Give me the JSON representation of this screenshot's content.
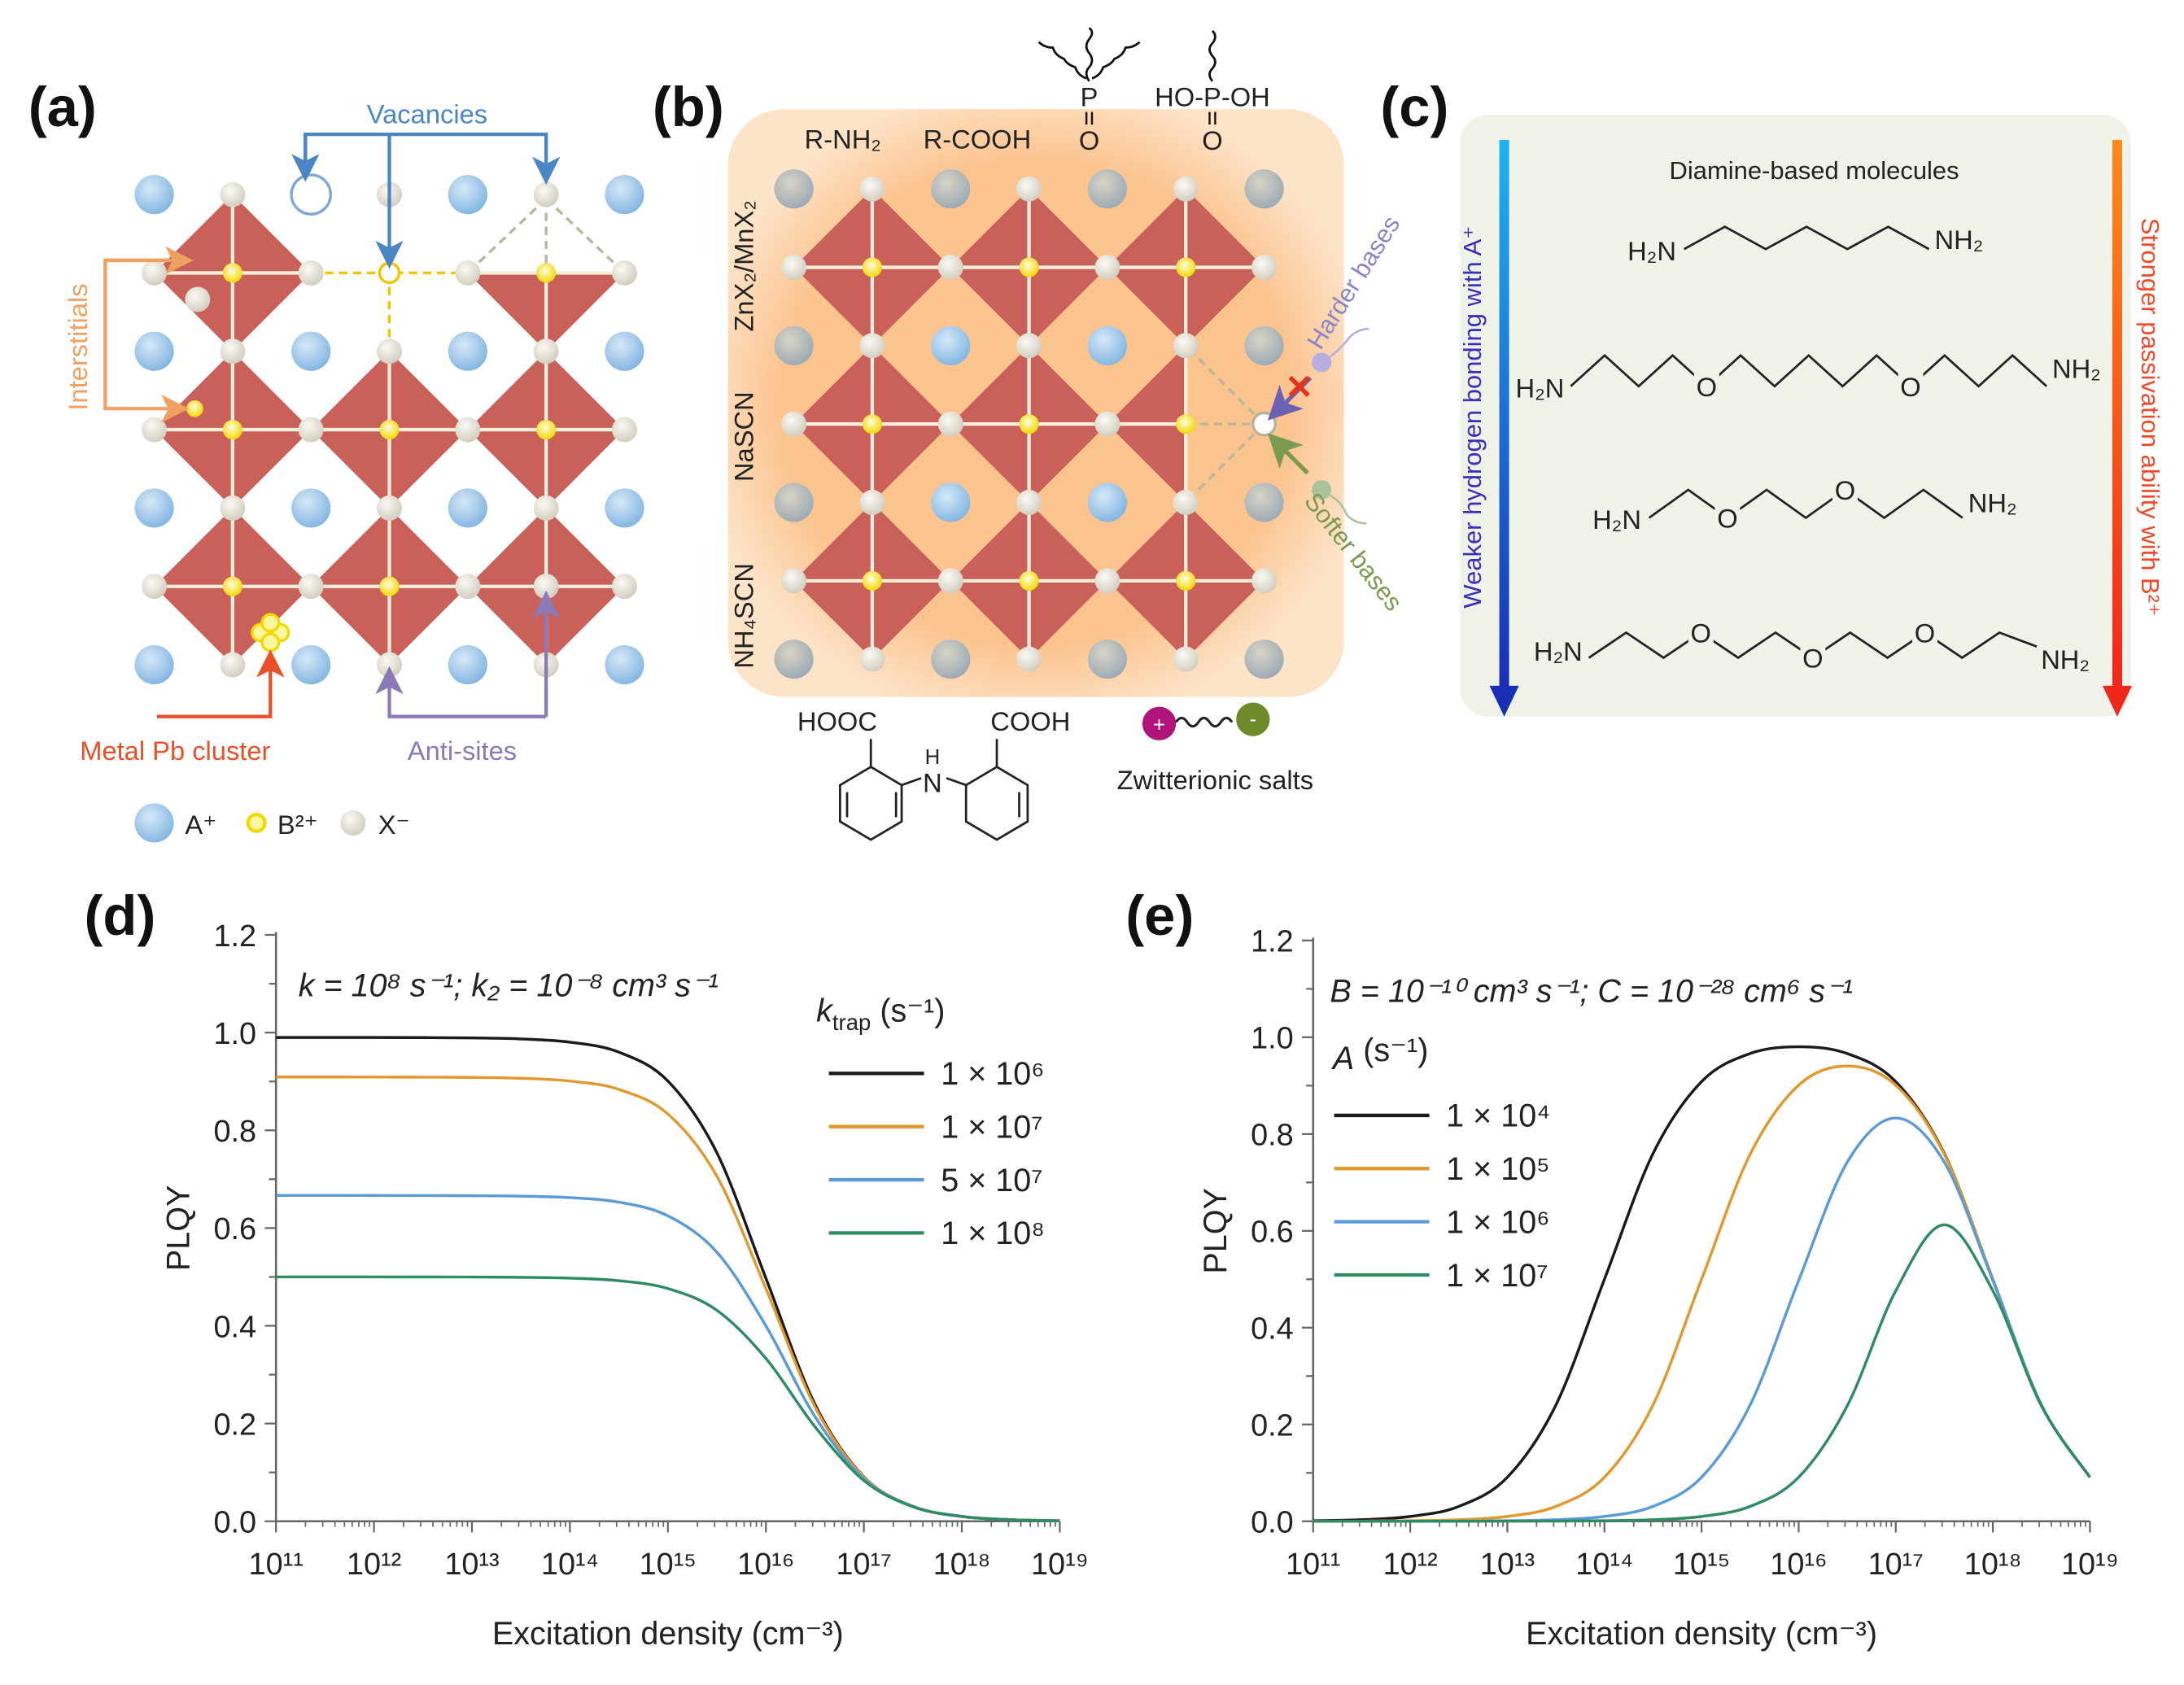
{
  "panel_labels": {
    "a": "(a)",
    "b": "(b)",
    "c": "(c)",
    "d": "(d)",
    "e": "(e)"
  },
  "panel_a": {
    "vacancies": "Vacancies",
    "interstitials": "Interstitials",
    "metal_pb_cluster": "Metal Pb cluster",
    "anti_sites": "Anti-sites",
    "legend": {
      "a": "A⁺",
      "b": "B²⁺",
      "x": "X⁻"
    },
    "colors": {
      "vacancies": "#4a86c5",
      "interstitials": "#f0a060",
      "metal_pb_cluster": "#e8502a",
      "anti_sites": "#8b79b8",
      "octahedron": "#c9605a",
      "a_site": "#8fbde6",
      "b_site": "#f5e12a",
      "x_site": "#e4e0d4"
    }
  },
  "panel_b": {
    "top": {
      "amine": "R-NH₂",
      "acid": "R-COOH",
      "phosphine_p": "P",
      "phosphine_o": "O",
      "phosphonic": "HO-P-OH",
      "phosphonic_o": "O"
    },
    "left": {
      "zn": "ZnX₂/MnX₂",
      "nascn": "NaSCN",
      "nh4scn": "NH₄SCN"
    },
    "harder_bases": "Harder bases",
    "softer_bases": "Softer bases",
    "hooc": "HOOC",
    "cooh": "COOH",
    "nh_h": "H",
    "nh_n": "N",
    "zwitterionic": "Zwitterionic salts",
    "plus": "+",
    "minus": "-",
    "block_mark": "✕"
  },
  "panel_c": {
    "title": "Diamine-based molecules",
    "left_arrow": "Weaker hydrogen bonding with A⁺",
    "right_arrow": "Stronger passivation ability with B²⁺",
    "h2n": "H₂N",
    "nh2": "NH₂",
    "oxygen": "O"
  },
  "chart_data": [
    {
      "type": "line",
      "id": "d",
      "title": "",
      "annotation": "k = 10⁸ s⁻¹; k₂ = 10⁻⁸ cm³ s⁻¹",
      "xlabel": "Excitation density (cm⁻³)",
      "ylabel": "PLQY",
      "xscale": "log",
      "xlim": [
        100000000000.0,
        1e+19
      ],
      "ylim": [
        0,
        1.2
      ],
      "xticks": [
        "10¹¹",
        "10¹²",
        "10¹³",
        "10¹⁴",
        "10¹⁵",
        "10¹⁶",
        "10¹⁷",
        "10¹⁸",
        "10¹⁹"
      ],
      "yticks": [
        "0.0",
        "0.2",
        "0.4",
        "0.6",
        "0.8",
        "1.0",
        "1.2"
      ],
      "legend_title_main": "k",
      "legend_title_sub": "trap",
      "legend_title_unit": " (s⁻¹)",
      "legend_position": "right",
      "x_log10": [
        11,
        11.5,
        12,
        12.5,
        13,
        13.5,
        14,
        14.5,
        15,
        15.5,
        16,
        16.5,
        17,
        17.5,
        18,
        18.5,
        19
      ],
      "series": [
        {
          "name": "1 × 10⁶",
          "color": "#1a1a1a",
          "values": [
            0.9901,
            0.99,
            0.99,
            0.9898,
            0.9891,
            0.987,
            0.9804,
            0.96,
            0.9009,
            0.754,
            0.4975,
            0.2397,
            0.0908,
            0.0306,
            0.0099,
            0.0032,
            0.001
          ]
        },
        {
          "name": "1 × 10⁷",
          "color": "#e0992f",
          "values": [
            0.9091,
            0.9091,
            0.909,
            0.9088,
            0.9083,
            0.9065,
            0.9009,
            0.8837,
            0.8333,
            0.7061,
            0.4762,
            0.2346,
            0.0901,
            0.0306,
            0.0099,
            0.0032,
            0.001
          ]
        },
        {
          "name": "5 × 10⁷",
          "color": "#5b9bd5",
          "values": [
            0.6667,
            0.6667,
            0.6666,
            0.6665,
            0.6662,
            0.6653,
            0.6623,
            0.6529,
            0.625,
            0.5506,
            0.4,
            0.2145,
            0.087,
            0.0302,
            0.0099,
            0.0031,
            0.001
          ]
        },
        {
          "name": "1 × 10⁸",
          "color": "#2e8b62",
          "values": [
            0.5,
            0.5,
            0.5,
            0.4999,
            0.4998,
            0.4992,
            0.4975,
            0.4922,
            0.4762,
            0.4317,
            0.3333,
            0.1937,
            0.0833,
            0.0297,
            0.0098,
            0.0031,
            0.001
          ]
        }
      ]
    },
    {
      "type": "line",
      "id": "e",
      "title": "",
      "annotation": "B = 10⁻¹⁰ cm³ s⁻¹; C = 10⁻²⁸ cm⁶ s⁻¹",
      "xlabel": "Excitation density (cm⁻³)",
      "ylabel": "PLQY",
      "xscale": "log",
      "xlim": [
        100000000000.0,
        1e+19
      ],
      "ylim": [
        0,
        1.2
      ],
      "xticks": [
        "10¹¹",
        "10¹²",
        "10¹³",
        "10¹⁴",
        "10¹⁵",
        "10¹⁶",
        "10¹⁷",
        "10¹⁸",
        "10¹⁹"
      ],
      "yticks": [
        "0.0",
        "0.2",
        "0.4",
        "0.6",
        "0.8",
        "1.0",
        "1.2"
      ],
      "legend_title_main": "A",
      "legend_title_sub": "",
      "legend_title_unit": " (s⁻¹)",
      "legend_position": "top-left",
      "x_log10": [
        11,
        11.5,
        12,
        12.5,
        13,
        13.5,
        14,
        14.5,
        15,
        15.5,
        16,
        16.5,
        17,
        17.5,
        18,
        18.5,
        19
      ],
      "series": [
        {
          "name": "1 × 10⁴",
          "color": "#1a1a1a",
          "values": [
            0.001,
            0.0032,
            0.0099,
            0.0306,
            0.0909,
            0.2402,
            0.5,
            0.7596,
            0.9083,
            0.9664,
            0.9804,
            0.9664,
            0.9083,
            0.7597,
            0.5,
            0.2402,
            0.0909
          ]
        },
        {
          "name": "1 × 10⁵",
          "color": "#e0992f",
          "values": [
            0.0001,
            0.0003,
            0.001,
            0.0032,
            0.0099,
            0.0307,
            0.0909,
            0.2402,
            0.4998,
            0.7579,
            0.9009,
            0.9405,
            0.9009,
            0.7579,
            0.4998,
            0.2402,
            0.0909
          ]
        },
        {
          "name": "1 × 10⁶",
          "color": "#5b9bd5",
          "values": [
            0.0,
            0.0,
            0.0001,
            0.0003,
            0.001,
            0.0032,
            0.0099,
            0.0307,
            0.0909,
            0.2401,
            0.4975,
            0.7418,
            0.8333,
            0.742,
            0.4975,
            0.2401,
            0.0909
          ]
        },
        {
          "name": "1 × 10⁷",
          "color": "#2e8b62",
          "values": [
            0.0,
            0.0,
            0.0,
            0.0,
            0.0001,
            0.0003,
            0.001,
            0.0032,
            0.0099,
            0.0307,
            0.0908,
            0.2384,
            0.4762,
            0.6125,
            0.4762,
            0.2384,
            0.0908
          ]
        }
      ]
    }
  ]
}
